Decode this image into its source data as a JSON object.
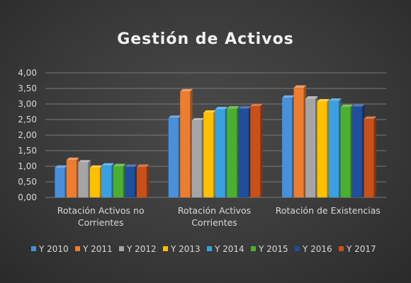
{
  "chart_data": {
    "type": "bar",
    "title": "Gestión de Activos",
    "categories": [
      [
        "Rotación Activos no",
        "Corrientes"
      ],
      [
        "Rotación Activos",
        "Corrientes"
      ],
      [
        "Rotación de Existencias"
      ]
    ],
    "series": [
      {
        "name": "Y 2010",
        "color": "#4a90d9",
        "values": [
          0.95,
          2.55,
          3.2
        ]
      },
      {
        "name": "Y 2011",
        "color": "#ed7d31",
        "values": [
          1.2,
          3.4,
          3.52
        ]
      },
      {
        "name": "Y 2012",
        "color": "#a5a5a5",
        "values": [
          1.12,
          2.47,
          3.17
        ]
      },
      {
        "name": "Y 2013",
        "color": "#ffc000",
        "values": [
          0.95,
          2.72,
          3.08
        ]
      },
      {
        "name": "Y 2014",
        "color": "#3aa0e0",
        "values": [
          1.02,
          2.83,
          3.1
        ]
      },
      {
        "name": "Y 2015",
        "color": "#4caf32",
        "values": [
          1.0,
          2.85,
          2.9
        ]
      },
      {
        "name": "Y 2016",
        "color": "#1f4e9a",
        "values": [
          0.98,
          2.85,
          2.92
        ]
      },
      {
        "name": "Y 2017",
        "color": "#c8501a",
        "values": [
          0.98,
          2.93,
          2.52
        ]
      }
    ],
    "yticks": [
      "0,00",
      "0,50",
      "1,00",
      "1,50",
      "2,00",
      "2,50",
      "3,00",
      "3,50",
      "4,00"
    ],
    "ylim": [
      0,
      4
    ],
    "grid": true,
    "legend_position": "bottom"
  }
}
